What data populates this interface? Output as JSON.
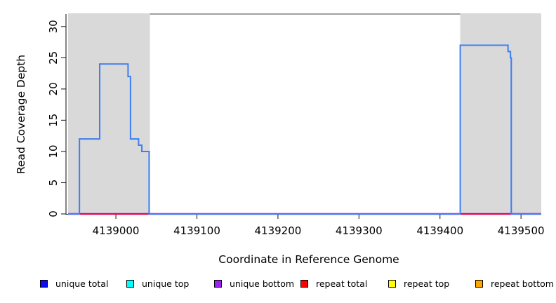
{
  "chart_data": {
    "type": "line",
    "step": true,
    "title": "",
    "xlabel": "Coordinate in Reference Genome",
    "ylabel": "Read Coverage Depth",
    "xlim": [
      4138941,
      4139525
    ],
    "ylim": [
      0,
      32
    ],
    "x_ticks": [
      4139000,
      4139100,
      4139200,
      4139300,
      4139400,
      4139500
    ],
    "y_ticks": [
      0,
      5,
      10,
      15,
      20,
      25,
      30
    ],
    "grid": false,
    "legend_position": "bottom",
    "repeat_region_color": "#d9d9d9",
    "repeat_regions": [
      [
        4138941,
        4139042
      ],
      [
        4139425,
        4139525
      ]
    ],
    "series": [
      {
        "name": "unique bottom baseline",
        "color": "#a020f0",
        "width": 2.6,
        "segments": [
          [
            [
              4138941,
              0
            ],
            [
              4139525,
              0
            ]
          ]
        ]
      },
      {
        "name": "repeat total baseline",
        "color": "#ff0000",
        "width": 1.6,
        "segments": [
          [
            [
              4138941,
              0
            ],
            [
              4139042,
              0
            ]
          ],
          [
            [
              4139425,
              0
            ],
            [
              4139525,
              0
            ]
          ]
        ]
      },
      {
        "name": "unique total coverage",
        "color": "#3d7ef0",
        "width": 2,
        "segments": [
          [
            [
              4138941,
              0
            ],
            [
              4138955,
              0
            ],
            [
              4138955,
              12
            ],
            [
              4138980,
              12
            ],
            [
              4138980,
              24
            ],
            [
              4139015,
              24
            ],
            [
              4139015,
              22
            ],
            [
              4139018,
              22
            ],
            [
              4139018,
              12
            ],
            [
              4139028,
              12
            ],
            [
              4139028,
              11
            ],
            [
              4139032,
              11
            ],
            [
              4139032,
              10
            ],
            [
              4139041,
              10
            ],
            [
              4139041,
              0
            ],
            [
              4139425,
              0
            ],
            [
              4139425,
              27
            ],
            [
              4139484,
              27
            ],
            [
              4139484,
              26
            ],
            [
              4139487,
              26
            ],
            [
              4139487,
              25
            ],
            [
              4139488,
              25
            ],
            [
              4139488,
              0
            ],
            [
              4139525,
              0
            ]
          ]
        ]
      }
    ],
    "legend": [
      {
        "label": "unique total",
        "color": "#0d0dee"
      },
      {
        "label": "unique top",
        "color": "#00ffff"
      },
      {
        "label": "unique bottom",
        "color": "#a020f0"
      },
      {
        "label": "repeat total",
        "color": "#ff0000"
      },
      {
        "label": "repeat top",
        "color": "#ffff00"
      },
      {
        "label": "repeat bottom",
        "color": "#ffa500"
      }
    ]
  }
}
